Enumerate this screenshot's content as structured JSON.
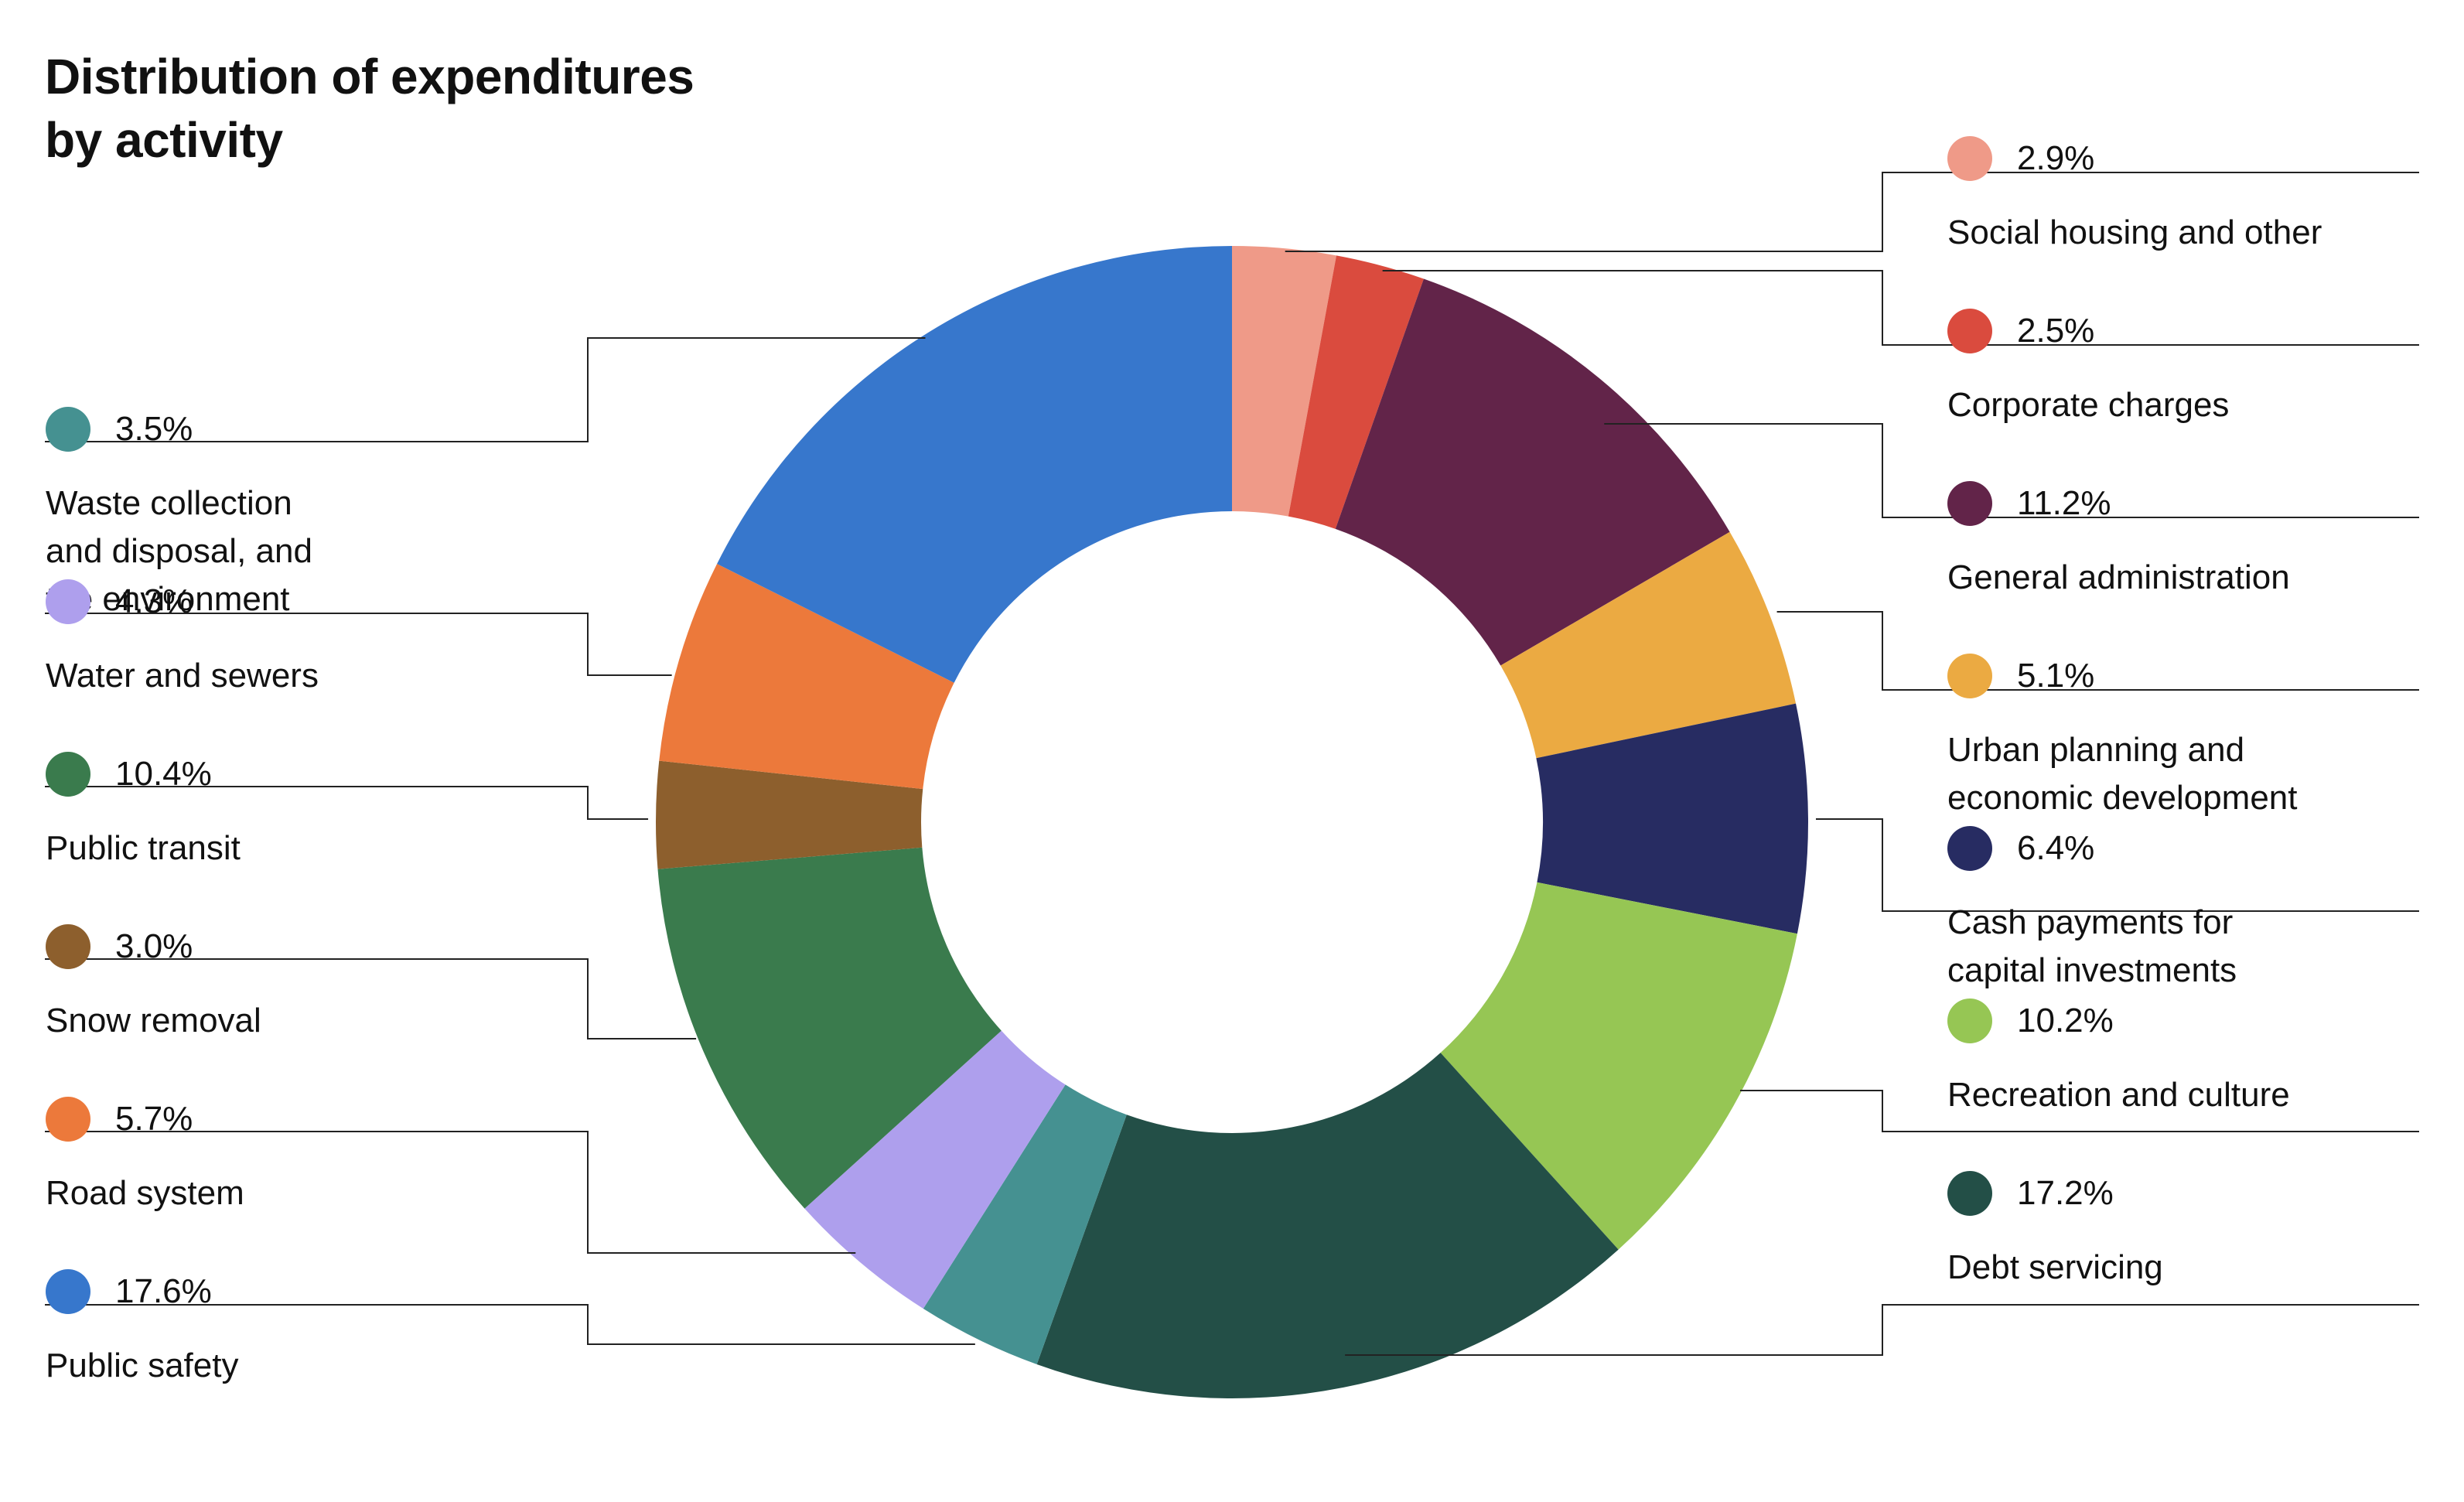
{
  "title_lines": [
    "Distribution of expenditures",
    "by activity"
  ],
  "chart_data": {
    "type": "pie",
    "variant": "donut",
    "title": "Distribution of expenditures by activity",
    "unit": "%",
    "slices": [
      {
        "label": "Social housing and other",
        "lines": [
          "Social housing and other"
        ],
        "value": 2.9,
        "display": "2.9%",
        "color": "#EF9A88",
        "side": "right"
      },
      {
        "label": "Corporate charges",
        "lines": [
          "Corporate charges"
        ],
        "value": 2.5,
        "display": "2.5%",
        "color": "#DA4B3E",
        "side": "right"
      },
      {
        "label": "General administration",
        "lines": [
          "General administration"
        ],
        "value": 11.2,
        "display": "11.2%",
        "color": "#622449",
        "side": "right"
      },
      {
        "label": "Urban planning and economic development",
        "lines": [
          "Urban planning and",
          "economic development"
        ],
        "value": 5.1,
        "display": "5.1%",
        "color": "#EBAA42",
        "side": "right"
      },
      {
        "label": "Cash payments for capital investments",
        "lines": [
          "Cash payments for",
          "capital investments"
        ],
        "value": 6.4,
        "display": "6.4%",
        "color": "#272C62",
        "side": "right"
      },
      {
        "label": "Recreation and culture",
        "lines": [
          "Recreation and culture"
        ],
        "value": 10.2,
        "display": "10.2%",
        "color": "#96C654",
        "side": "right"
      },
      {
        "label": "Debt servicing",
        "lines": [
          "Debt servicing"
        ],
        "value": 17.2,
        "display": "17.2%",
        "color": "#234F47",
        "side": "right"
      },
      {
        "label": "Waste collection and disposal, and the environment",
        "lines": [
          "Waste collection",
          "and disposal, and",
          "the environment"
        ],
        "value": 3.5,
        "display": "3.5%",
        "color": "#459191",
        "side": "left"
      },
      {
        "label": "Water and sewers",
        "lines": [
          "Water and sewers"
        ],
        "value": 4.3,
        "display": "4.3%",
        "color": "#AE9FED",
        "side": "left"
      },
      {
        "label": "Public transit",
        "lines": [
          "Public transit"
        ],
        "value": 10.4,
        "display": "10.4%",
        "color": "#3A7B4D",
        "side": "left"
      },
      {
        "label": "Snow removal",
        "lines": [
          "Snow removal"
        ],
        "value": 3.0,
        "display": "3.0%",
        "color": "#8D5F2D",
        "side": "left"
      },
      {
        "label": "Road system",
        "lines": [
          "Road system"
        ],
        "value": 5.7,
        "display": "5.7%",
        "color": "#EC793B",
        "side": "left"
      },
      {
        "label": "Public safety",
        "lines": [
          "Public safety"
        ],
        "value": 17.6,
        "display": "17.6%",
        "color": "#3777CC",
        "side": "left"
      }
    ],
    "legend": "left and right of chart with leader lines"
  }
}
